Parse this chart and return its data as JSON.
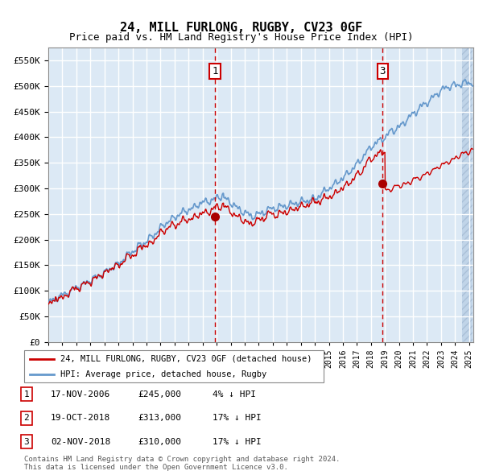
{
  "title": "24, MILL FURLONG, RUGBY, CV23 0GF",
  "subtitle": "Price paid vs. HM Land Registry's House Price Index (HPI)",
  "legend_line1": "24, MILL FURLONG, RUGBY, CV23 0GF (detached house)",
  "legend_line2": "HPI: Average price, detached house, Rugby",
  "table": [
    {
      "num": "1",
      "date": "17-NOV-2006",
      "price": "£245,000",
      "pct": "4% ↓ HPI"
    },
    {
      "num": "2",
      "date": "19-OCT-2018",
      "price": "£313,000",
      "pct": "17% ↓ HPI"
    },
    {
      "num": "3",
      "date": "02-NOV-2018",
      "price": "£310,000",
      "pct": "17% ↓ HPI"
    }
  ],
  "footer": "Contains HM Land Registry data © Crown copyright and database right 2024.\nThis data is licensed under the Open Government Licence v3.0.",
  "sale1_year": 2006.88,
  "sale1_price": 245000,
  "sale2_year": 2018.8,
  "sale2_price": 313000,
  "sale3_year": 2018.84,
  "sale3_price": 310000,
  "vline1_year": 2006.88,
  "vline2_year": 2018.84,
  "ylim": [
    0,
    575000
  ],
  "xlim_start": 1995.0,
  "xlim_end": 2025.3,
  "bg_color": "#dce9f5",
  "hatch_color": "#c0d4e8",
  "grid_color": "#ffffff",
  "hpi_color": "#6699cc",
  "price_color": "#cc0000",
  "vline_color": "#cc0000",
  "dot_color": "#aa0000"
}
